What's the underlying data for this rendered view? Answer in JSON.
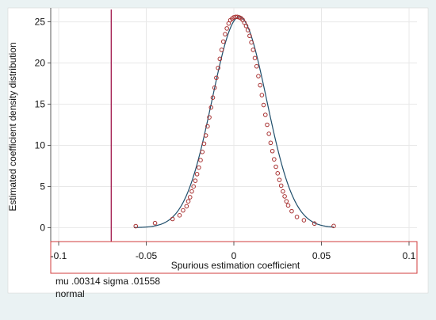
{
  "chart_data": {
    "type": "scatter",
    "title": "",
    "xlabel": "Spurious estimation coefficient",
    "ylabel": "Estimated coefficient density distribution",
    "xlim": [
      -0.1,
      0.1
    ],
    "ylim": [
      -1.5,
      26.5
    ],
    "x_ticks": [
      -0.1,
      -0.05,
      0,
      0.05,
      0.1
    ],
    "x_tick_labels": [
      "-0.1",
      "-0.05",
      "0",
      "0.05",
      "0.1"
    ],
    "y_ticks": [
      0,
      5,
      10,
      15,
      20,
      25
    ],
    "y_tick_labels": [
      "0",
      "5",
      "10",
      "15",
      "20",
      "25"
    ],
    "grid": true,
    "vertical_reference_line": {
      "x": -0.07
    },
    "series": [
      {
        "type": "scatter",
        "marker": "hollow-circle",
        "points": [
          [
            -0.056,
            0.18
          ],
          [
            -0.045,
            0.55
          ],
          [
            -0.035,
            1.05
          ],
          [
            -0.031,
            1.5
          ],
          [
            -0.029,
            2.1
          ],
          [
            -0.027,
            2.6
          ],
          [
            -0.026,
            3.2
          ],
          [
            -0.025,
            3.7
          ],
          [
            -0.024,
            4.4
          ],
          [
            -0.023,
            5.0
          ],
          [
            -0.022,
            5.7
          ],
          [
            -0.021,
            6.5
          ],
          [
            -0.02,
            7.3
          ],
          [
            -0.019,
            8.2
          ],
          [
            -0.018,
            9.2
          ],
          [
            -0.017,
            10.2
          ],
          [
            -0.016,
            11.2
          ],
          [
            -0.015,
            12.3
          ],
          [
            -0.014,
            13.4
          ],
          [
            -0.013,
            14.6
          ],
          [
            -0.012,
            15.8
          ],
          [
            -0.011,
            17.0
          ],
          [
            -0.01,
            18.2
          ],
          [
            -0.009,
            19.4
          ],
          [
            -0.008,
            20.5
          ],
          [
            -0.007,
            21.6
          ],
          [
            -0.006,
            22.6
          ],
          [
            -0.005,
            23.5
          ],
          [
            -0.004,
            24.2
          ],
          [
            -0.003,
            24.8
          ],
          [
            -0.002,
            25.2
          ],
          [
            -0.001,
            25.4
          ],
          [
            0.0,
            25.55
          ],
          [
            0.001,
            25.6
          ],
          [
            0.002,
            25.6
          ],
          [
            0.003,
            25.55
          ],
          [
            0.004,
            25.45
          ],
          [
            0.005,
            25.25
          ],
          [
            0.006,
            24.9
          ],
          [
            0.007,
            24.5
          ],
          [
            0.008,
            24.0
          ],
          [
            0.009,
            23.3
          ],
          [
            0.01,
            22.5
          ],
          [
            0.011,
            21.6
          ],
          [
            0.012,
            20.6
          ],
          [
            0.013,
            19.6
          ],
          [
            0.014,
            18.4
          ],
          [
            0.015,
            17.3
          ],
          [
            0.016,
            16.1
          ],
          [
            0.017,
            14.9
          ],
          [
            0.018,
            13.7
          ],
          [
            0.019,
            12.5
          ],
          [
            0.02,
            11.4
          ],
          [
            0.021,
            10.3
          ],
          [
            0.022,
            9.3
          ],
          [
            0.023,
            8.3
          ],
          [
            0.024,
            7.4
          ],
          [
            0.025,
            6.6
          ],
          [
            0.026,
            5.8
          ],
          [
            0.027,
            5.1
          ],
          [
            0.028,
            4.4
          ],
          [
            0.029,
            3.8
          ],
          [
            0.03,
            3.2
          ],
          [
            0.031,
            2.7
          ],
          [
            0.033,
            2.0
          ],
          [
            0.036,
            1.3
          ],
          [
            0.04,
            0.9
          ],
          [
            0.046,
            0.5
          ],
          [
            0.057,
            0.2
          ]
        ]
      },
      {
        "type": "line",
        "style": "normal-density",
        "mu": 0.00314,
        "sigma": 0.01558
      }
    ],
    "colors": {
      "marker": "#a83232",
      "normal_curve": "#1f4e6b",
      "reference_line": "#a0164a",
      "frame": "#d23c3c",
      "grid": "#e8e8e8",
      "outer_background": "#eaf2f3"
    },
    "annotations": {
      "line1": "mu .00314 sigma .01558",
      "line2": "normal"
    }
  }
}
